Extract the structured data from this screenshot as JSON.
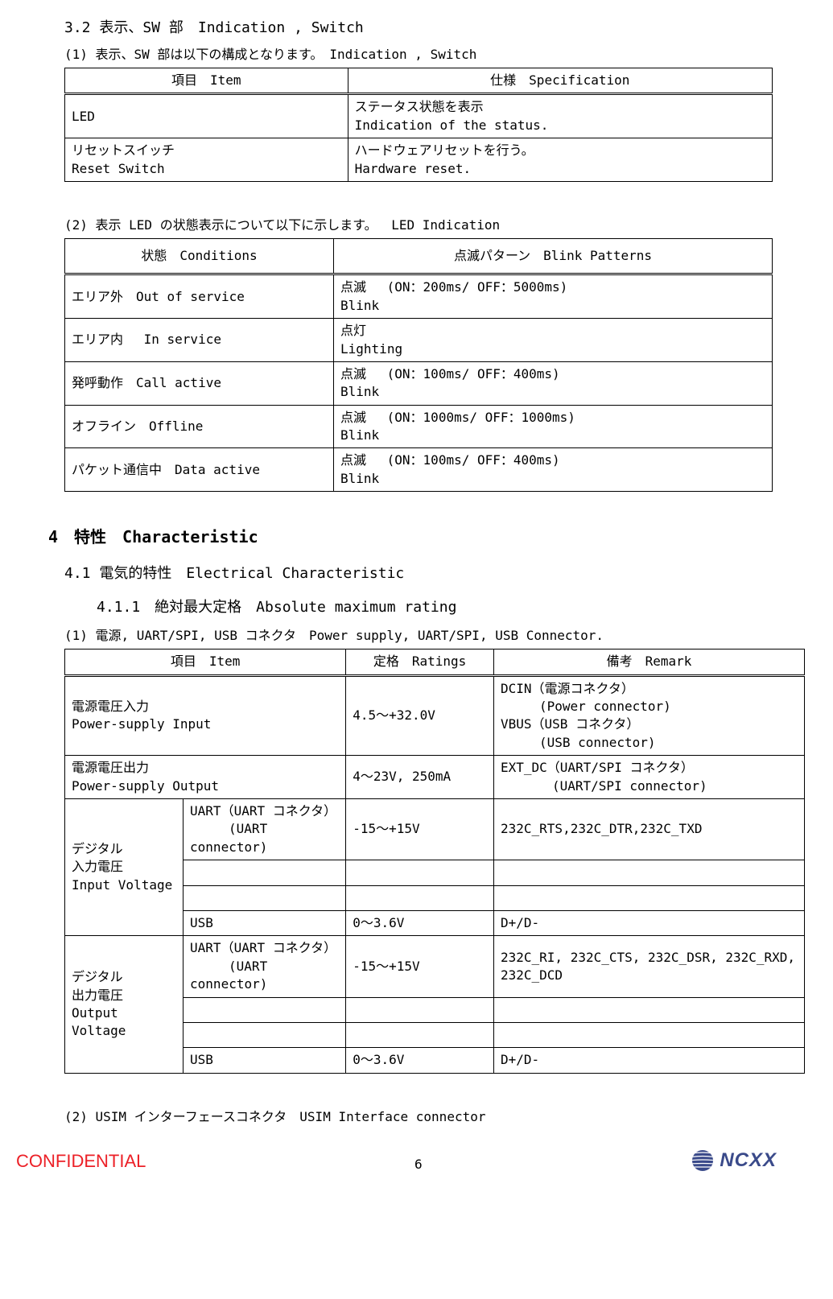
{
  "sec32": {
    "title": "3.2  表示、SW 部　Indication , Switch",
    "p1": "(1)  表示、SW 部は以下の構成となります。　Indication , Switch",
    "t1": {
      "h1": "項目　Item",
      "h2": "仕様　Specification",
      "rows": [
        {
          "c1": "LED",
          "c2": "ステータス状態を表示\nIndication of the status."
        },
        {
          "c1": "リセットスイッチ\nReset Switch",
          "c2": "ハードウェアリセットを行う。\nHardware reset."
        }
      ]
    },
    "p2": "(2)  表示 LED の状態表示について以下に示します。　 LED Indication",
    "t2": {
      "h1": "状態　Conditions",
      "h2": "点滅パターン　Blink Patterns",
      "rows": [
        {
          "c1": "エリア外　Out of service",
          "c2": "点滅　 (ON：200ms/ OFF：5000ms)\nBlink"
        },
        {
          "c1": "エリア内　 In service",
          "c2": "点灯\nLighting"
        },
        {
          "c1": "発呼動作　Call active",
          "c2": "点滅　 (ON：100ms/ OFF：400ms)\nBlink"
        },
        {
          "c1": "オフライン　Offline",
          "c2": "点滅　 (ON：1000ms/ OFF：1000ms)\nBlink"
        },
        {
          "c1": "パケット通信中　Data active",
          "c2": "点滅　 (ON：100ms/ OFF：400ms)\nBlink"
        }
      ]
    }
  },
  "sec4": {
    "title": "4　特性　Characteristic",
    "sec41": "4.1  電気的特性　Electrical Characteristic",
    "sec411": "4.1.1　絶対最大定格　Absolute maximum rating",
    "p1": "(1)  電源, UART/SPI, USB コネクタ　Power supply, UART/SPI, USB Connector.",
    "t3": {
      "h1": "項目　Item",
      "h2": "定格　Ratings",
      "h3": "備考　Remark",
      "r1c1": "電源電圧入力\nPower-supply Input",
      "r1c2": "4.5～+32.0V",
      "r1c3": "DCIN（電源コネクタ）\n　　　(Power connector)\nVBUS（USB コネクタ）\n　　　(USB connector)",
      "r2c1": "電源電圧出力\nPower-supply Output",
      "r2c2": "4～23V, 250mA",
      "r2c3": "EXT_DC（UART/SPI コネクタ）\n　　　　(UART/SPI connector)",
      "r3c1": "デジタル\n入力電圧\nInput Voltage",
      "r3a": "UART（UART コネクタ）\n　　　(UART connector)",
      "r3a2": "-15～+15V",
      "r3a3": "232C_RTS,232C_DTR,232C_TXD",
      "r3d": "USB",
      "r3d2": "0～3.6V",
      "r3d3": "D+/D-",
      "r4c1": "デジタル\n出力電圧\nOutput Voltage",
      "r4a": "UART（UART コネクタ）\n　　　(UART connector)",
      "r4a2": "-15～+15V",
      "r4a3": "232C_RI, 232C_CTS, 232C_DSR, 232C_RXD, 232C_DCD",
      "r4d": "USB",
      "r4d2": "0～3.6V",
      "r4d3": "D+/D-"
    },
    "p2": "(2) USIM インターフェースコネクタ　USIM Interface connector"
  },
  "footer": {
    "confidential": "CONFIDENTIAL",
    "page": "6",
    "logo": "NCXX"
  },
  "colors": {
    "confidential": "#ec2027",
    "logo": "#3a4a8a"
  }
}
